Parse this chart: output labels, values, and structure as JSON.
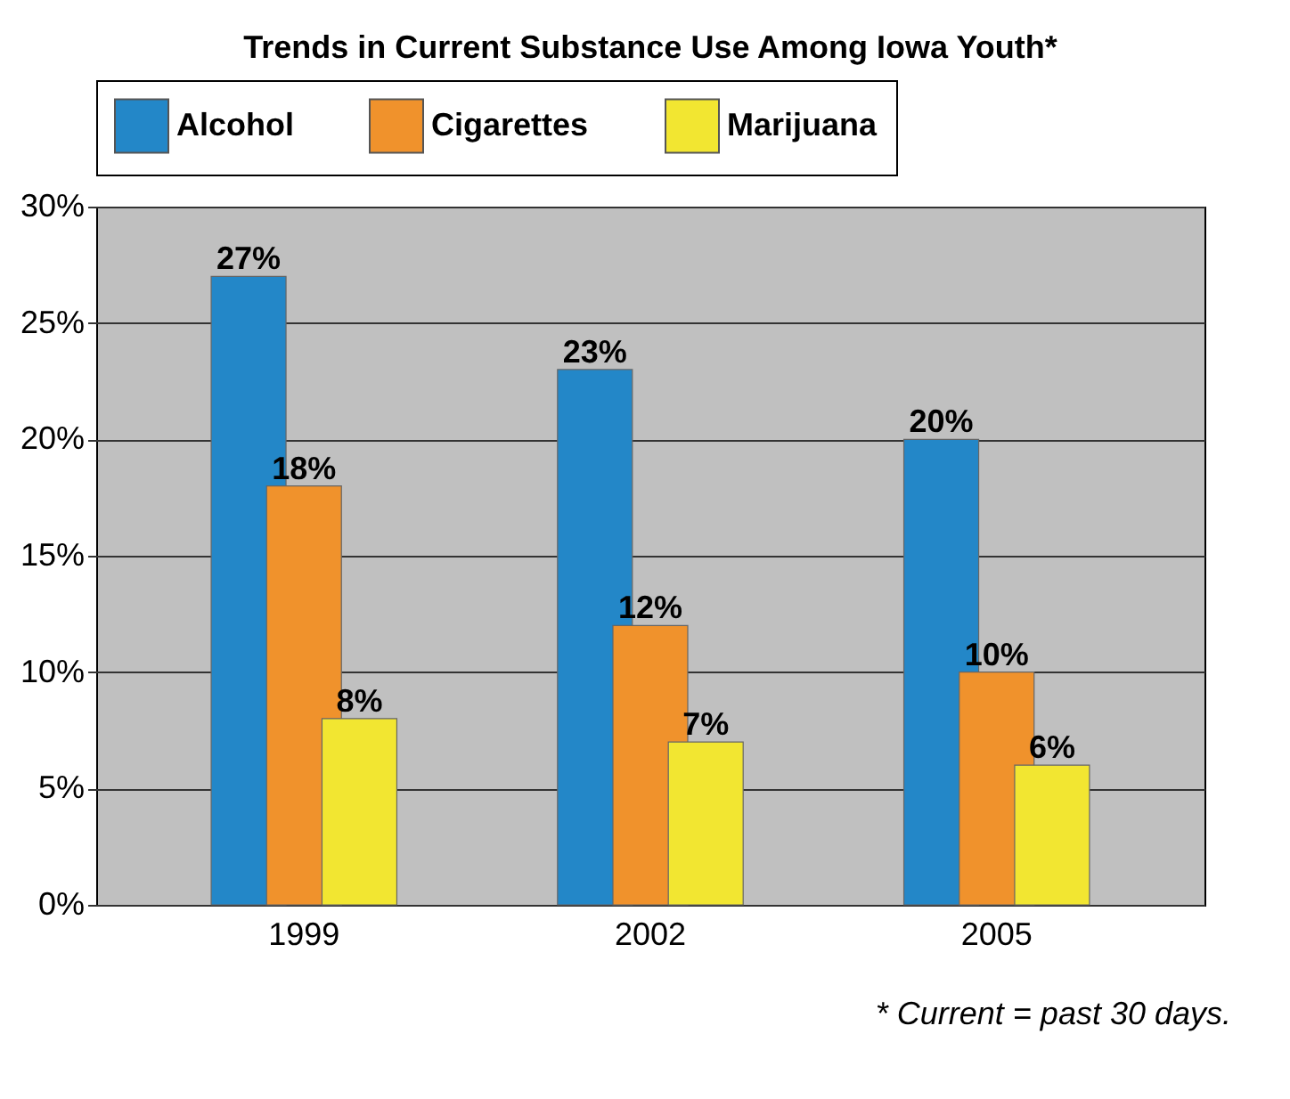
{
  "chart_data": {
    "type": "bar",
    "title": "Trends in Current Substance Use Among Iowa Youth*",
    "categories": [
      "1999",
      "2002",
      "2005"
    ],
    "series": [
      {
        "name": "Alcohol",
        "color": "#2387c8",
        "values": [
          27,
          23,
          20
        ],
        "value_labels": [
          "27%",
          "23%",
          "20%"
        ]
      },
      {
        "name": "Cigarettes",
        "color": "#f0922c",
        "values": [
          18,
          12,
          10
        ],
        "value_labels": [
          "18%",
          "12%",
          "10%"
        ]
      },
      {
        "name": "Marijuana",
        "color": "#f2e631",
        "values": [
          8,
          7,
          6
        ],
        "value_labels": [
          "8%",
          "7%",
          "6%"
        ]
      }
    ],
    "ylim": [
      0,
      30
    ],
    "yticks": [
      {
        "value": 0,
        "label": "0%"
      },
      {
        "value": 5,
        "label": "5%"
      },
      {
        "value": 10,
        "label": "10%"
      },
      {
        "value": 15,
        "label": "15%"
      },
      {
        "value": 20,
        "label": "20%"
      },
      {
        "value": 25,
        "label": "25%"
      },
      {
        "value": 30,
        "label": "30%"
      }
    ],
    "grid": "y",
    "legend": "top",
    "annotations": [
      "* Current = past 30 days."
    ]
  }
}
